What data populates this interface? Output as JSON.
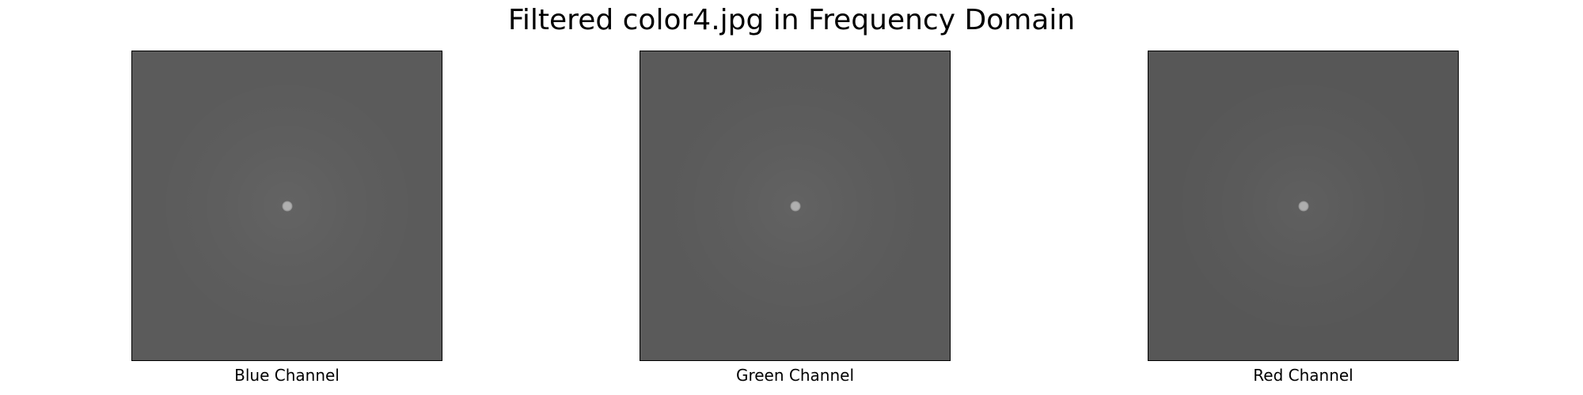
{
  "figure": {
    "title": "Filtered color4.jpg in Frequency Domain"
  },
  "panels": [
    {
      "label": "Blue Channel",
      "background": "#5b5b5b",
      "center": "#b0b0b0"
    },
    {
      "label": "Green Channel",
      "background": "#5a5a5a",
      "center": "#afafaf"
    },
    {
      "label": "Red Channel",
      "background": "#575757",
      "center": "#aeaeae"
    }
  ]
}
